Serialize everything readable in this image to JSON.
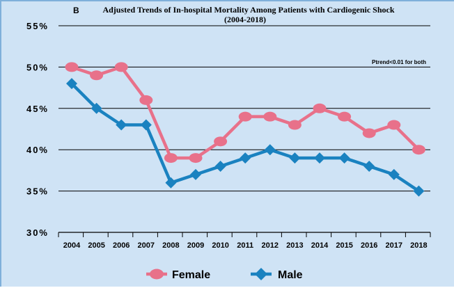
{
  "chart_data": {
    "type": "line",
    "panel_label": "B",
    "title": "Adjusted Trends of In-hospital Mortality Among Patients with Cardiogenic Shock",
    "subtitle": "(2004-2018)",
    "annotation": "Ptrend<0.01 for both",
    "x": [
      "2004",
      "2005",
      "2006",
      "2007",
      "2008",
      "2009",
      "2010",
      "2011",
      "2012",
      "2013",
      "2014",
      "2015",
      "2016",
      "2017",
      "2018"
    ],
    "ylim": [
      30,
      55
    ],
    "yticks": [
      30,
      35,
      40,
      45,
      50,
      55
    ],
    "ytick_labels": [
      "30%",
      "35%",
      "40%",
      "45%",
      "50%",
      "55%"
    ],
    "grid": true,
    "legend_position": "bottom",
    "series": [
      {
        "name": "Female",
        "color": "#e8718a",
        "marker": "circle",
        "values": [
          50,
          49,
          50,
          46,
          39,
          39,
          41,
          44,
          44,
          43,
          45,
          44,
          42,
          43,
          40
        ]
      },
      {
        "name": "Male",
        "color": "#1a82c0",
        "marker": "diamond",
        "values": [
          48,
          45,
          43,
          43,
          36,
          37,
          38,
          39,
          40,
          39,
          39,
          39,
          38,
          37,
          35
        ]
      }
    ]
  }
}
